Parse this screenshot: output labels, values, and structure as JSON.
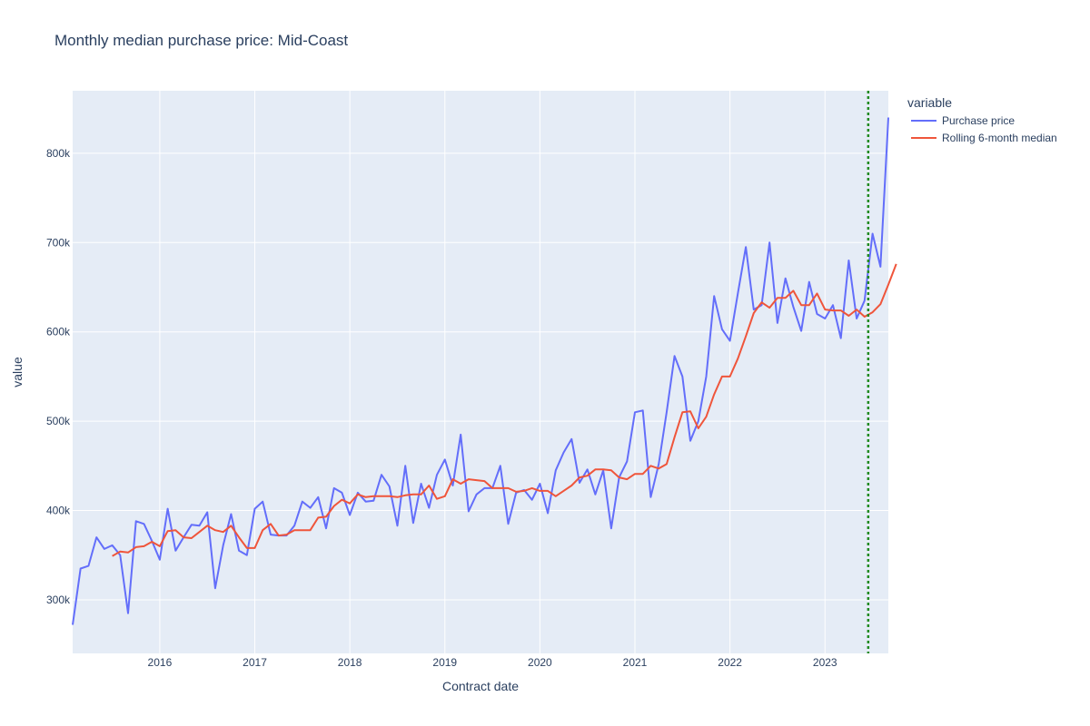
{
  "chart_data": {
    "type": "line",
    "title": "Monthly median purchase price: Mid-Coast",
    "xlabel": "Contract date",
    "ylabel": "value",
    "x_start": "2015-02",
    "xlim": [
      "2015-02",
      "2023-09"
    ],
    "ylim": [
      240000,
      870000
    ],
    "x_ticks": [
      "2016",
      "2017",
      "2018",
      "2019",
      "2020",
      "2021",
      "2022",
      "2023"
    ],
    "y_ticks": [
      {
        "value": 300000,
        "label": "300k"
      },
      {
        "value": 400000,
        "label": "400k"
      },
      {
        "value": 500000,
        "label": "500k"
      },
      {
        "value": 600000,
        "label": "600k"
      },
      {
        "value": 700000,
        "label": "700k"
      },
      {
        "value": 800000,
        "label": "800k"
      }
    ],
    "grid": true,
    "legend": {
      "title": "variable",
      "position": "right"
    },
    "vline": {
      "x": "2023-06-15",
      "color": "#228b22",
      "style": "dotted"
    },
    "series": [
      {
        "name": "Purchase price",
        "color": "#636efa",
        "start_index": 0,
        "values": [
          272000,
          335000,
          338000,
          370000,
          357000,
          361000,
          350000,
          285000,
          388000,
          385000,
          366000,
          345000,
          402000,
          355000,
          370000,
          384000,
          383000,
          398000,
          313000,
          361000,
          396000,
          355000,
          350000,
          402000,
          410000,
          373000,
          372000,
          372000,
          383000,
          410000,
          403000,
          415000,
          380000,
          425000,
          420000,
          395000,
          420000,
          410000,
          411000,
          440000,
          427000,
          383000,
          450000,
          386000,
          430000,
          403000,
          440000,
          457000,
          428000,
          485000,
          399000,
          418000,
          425000,
          425000,
          450000,
          385000,
          420000,
          423000,
          412000,
          430000,
          397000,
          445000,
          465000,
          480000,
          431000,
          446000,
          418000,
          445000,
          380000,
          437000,
          455000,
          510000,
          512000,
          415000,
          452000,
          510000,
          573000,
          550000,
          478000,
          500000,
          550000,
          640000,
          603000,
          590000,
          643000,
          695000,
          625000,
          630000,
          700000,
          610000,
          660000,
          628000,
          601000,
          656000,
          620000,
          615000,
          630000,
          593000,
          680000,
          615000,
          635000,
          710000,
          673000,
          840000
        ]
      },
      {
        "name": "Rolling 6-month median",
        "color": "#ef553b",
        "start_index": 5,
        "values": [
          349000,
          354000,
          353000,
          359000,
          360000,
          365000,
          360000,
          377000,
          378000,
          370000,
          369000,
          376000,
          383000,
          378000,
          376000,
          383000,
          370000,
          358000,
          358000,
          378000,
          385000,
          372000,
          373000,
          378000,
          378000,
          378000,
          392000,
          393000,
          405000,
          412000,
          408000,
          418000,
          415000,
          416000,
          416000,
          416000,
          415000,
          417000,
          418000,
          418000,
          428000,
          413000,
          416000,
          435000,
          430000,
          435000,
          434000,
          433000,
          425000,
          425000,
          425000,
          421000,
          422000,
          425000,
          422000,
          422000,
          416000,
          422000,
          428000,
          437000,
          439000,
          446000,
          446000,
          445000,
          437000,
          435000,
          441000,
          441000,
          450000,
          447000,
          452000,
          482000,
          510000,
          511000,
          492000,
          505000,
          530000,
          550000,
          550000,
          570000,
          595000,
          621000,
          633000,
          627000,
          638000,
          638000,
          646000,
          630000,
          630000,
          643000,
          625000,
          624000,
          624000,
          618000,
          625000,
          617000,
          622000,
          631000,
          653000,
          676000
        ]
      }
    ]
  }
}
